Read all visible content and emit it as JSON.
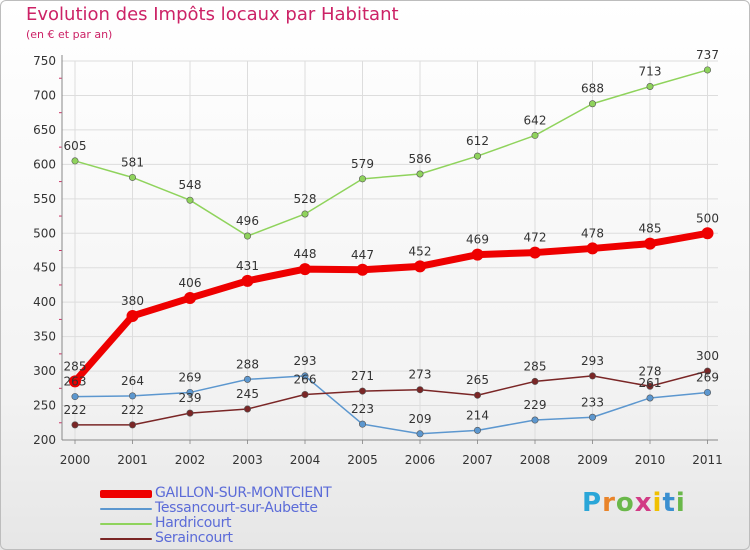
{
  "title": "Evolution des Impôts locaux par Habitant",
  "subtitle": "(en € et par an)",
  "logo": {
    "text": "Proxiti",
    "letter_colors": [
      "#2aa6d8",
      "#e9842a",
      "#6ab84a",
      "#d23b85",
      "#f0c000",
      "#3a8fd0",
      "#6ab84a"
    ]
  },
  "chart_data": {
    "type": "line",
    "x": [
      "2000",
      "2001",
      "2002",
      "2003",
      "2004",
      "2005",
      "2006",
      "2007",
      "2008",
      "2009",
      "2010",
      "2011"
    ],
    "ylim": [
      200,
      750
    ],
    "yticks": [
      "200",
      "250",
      "300",
      "350",
      "400",
      "450",
      "500",
      "550",
      "600",
      "650",
      "700",
      "750"
    ],
    "grid": true,
    "legend_position": "bottom-left",
    "series": [
      {
        "name": "GAILLON-SUR-MONTCIENT",
        "color": "#ee0000",
        "values": [
          285,
          380,
          406,
          431,
          448,
          447,
          452,
          469,
          472,
          478,
          485,
          500
        ],
        "labels": [
          "285",
          "380",
          "406",
          "431",
          "448",
          "447",
          "452",
          "469",
          "472",
          "478",
          "485",
          "500"
        ]
      },
      {
        "name": "Tessancourt-sur-Aubette",
        "color": "#5c97cf",
        "values": [
          263,
          264,
          269,
          288,
          293,
          223,
          209,
          214,
          229,
          233,
          261,
          269
        ],
        "labels": [
          "263",
          "264",
          "269",
          "288",
          "293",
          "223",
          "209",
          "214",
          "229",
          "233",
          "261",
          "269"
        ]
      },
      {
        "name": "Hardricourt",
        "color": "#8fd35c",
        "values": [
          605,
          581,
          548,
          496,
          528,
          579,
          586,
          612,
          642,
          688,
          713,
          737
        ],
        "labels": [
          "605",
          "581",
          "548",
          "496",
          "528",
          "579",
          "586",
          "612",
          "642",
          "688",
          "713",
          "737"
        ]
      },
      {
        "name": "Seraincourt",
        "color": "#7a2626",
        "values": [
          222,
          222,
          239,
          245,
          266,
          271,
          273,
          265,
          285,
          293,
          278,
          300
        ],
        "labels": [
          "222",
          "222",
          "239",
          "245",
          "266",
          "271",
          "273",
          "265",
          "285",
          "293",
          "278",
          "300"
        ]
      }
    ]
  }
}
